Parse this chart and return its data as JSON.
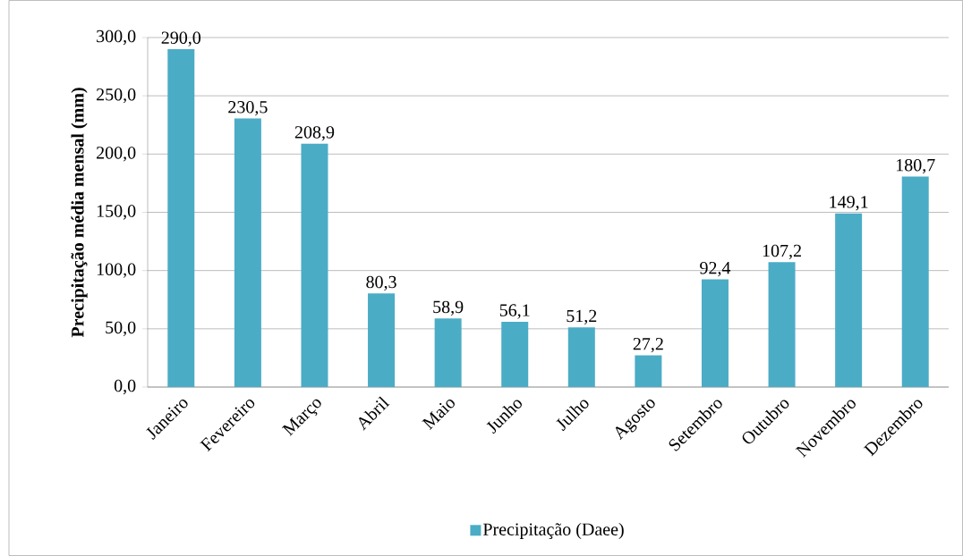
{
  "chart_data": {
    "type": "bar",
    "ylabel": "Precipitação média mensal (mm)",
    "categories": [
      "Janeiro",
      "Fevereiro",
      "Março",
      "Abril",
      "Maio",
      "Junho",
      "Julho",
      "Agosto",
      "Setembro",
      "Outubro",
      "Novembro",
      "Dezembro"
    ],
    "series": [
      {
        "name": "Precipitação (Daee)",
        "color": "#4bacc6",
        "values": [
          290.0,
          230.5,
          208.9,
          80.3,
          58.9,
          56.1,
          51.2,
          27.2,
          92.4,
          107.2,
          149.1,
          180.7
        ],
        "value_labels": [
          "290,0",
          "230,5",
          "208,9",
          "80,3",
          "58,9",
          "56,1",
          "51,2",
          "27,2",
          "92,4",
          "107,2",
          "149,1",
          "180,7"
        ]
      }
    ],
    "ylim": [
      0,
      300
    ],
    "yticks": [
      {
        "value": 0,
        "label": "0,0"
      },
      {
        "value": 50,
        "label": "50,0"
      },
      {
        "value": 100,
        "label": "100,0"
      },
      {
        "value": 150,
        "label": "150,0"
      },
      {
        "value": 200,
        "label": "200,0"
      },
      {
        "value": 250,
        "label": "250,0"
      },
      {
        "value": 300,
        "label": "300,0"
      }
    ],
    "grid": "y",
    "legend": "bottom"
  }
}
